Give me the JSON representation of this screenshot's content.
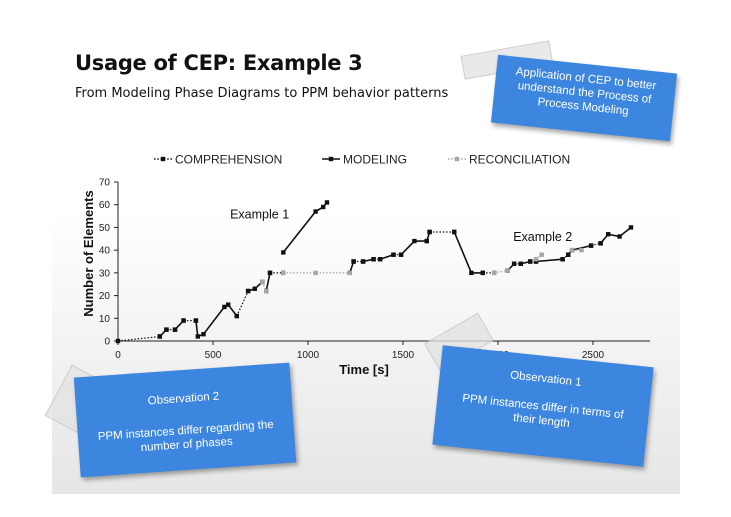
{
  "slide": {
    "title": "Usage of CEP: Example 3",
    "subtitle": "From Modeling Phase Diagrams to PPM behavior patterns"
  },
  "notes": {
    "cep": [
      "Application of CEP to better",
      "understand the Process of",
      "Process Modeling"
    ],
    "obs2": {
      "title": "Observation 2",
      "body": [
        "PPM instances differ regarding the",
        "number of phases"
      ]
    },
    "obs1": {
      "title": "Observation 1",
      "body": [
        "PPM instances differ in terms of",
        "their length"
      ]
    }
  },
  "colors": {
    "note_blue": "#3d86df",
    "comprehension": "#111111",
    "modeling": "#111111",
    "reconciliation": "#a6a6a6"
  },
  "chart_data": {
    "type": "line",
    "xlabel": "Time [s]",
    "ylabel": "Number of Elements",
    "xlim": [
      0,
      2800
    ],
    "ylim": [
      0,
      70
    ],
    "xticks": [
      0,
      500,
      1000,
      1500,
      2000,
      2500
    ],
    "yticks": [
      0,
      10,
      20,
      30,
      40,
      50,
      60,
      70
    ],
    "grid": false,
    "legend_position": "top",
    "annotations": [
      {
        "text": "Example 1",
        "x": 590,
        "y": 54
      },
      {
        "text": "Example 2",
        "x": 2080,
        "y": 44
      }
    ],
    "series": [
      {
        "name": "COMPREHENSION",
        "style": "dotted",
        "segments": [
          [
            [
              0,
              0
            ],
            [
              220,
              2
            ]
          ],
          [
            [
              255,
              5
            ],
            [
              300,
              5
            ]
          ],
          [
            [
              345,
              9
            ],
            [
              410,
              9
            ]
          ],
          [
            [
              625,
              11
            ],
            [
              685,
              22
            ]
          ],
          [
            [
              800,
              30
            ],
            [
              870,
              30
            ]
          ],
          [
            [
              1240,
              35
            ],
            [
              1290,
              35
            ]
          ],
          [
            [
              1345,
              36
            ],
            [
              1380,
              36
            ]
          ],
          [
            [
              1450,
              38
            ],
            [
              1490,
              38
            ]
          ],
          [
            [
              1640,
              48
            ],
            [
              1770,
              48
            ]
          ],
          [
            [
              1920,
              30
            ],
            [
              1980,
              30
            ]
          ],
          [
            [
              2085,
              34
            ],
            [
              2120,
              34
            ]
          ],
          [
            [
              2170,
              35
            ],
            [
              2200,
              35
            ]
          ],
          [
            [
              2340,
              36
            ],
            [
              2370,
              38
            ]
          ],
          [
            [
              2490,
              42
            ],
            [
              2540,
              43
            ]
          ]
        ]
      },
      {
        "name": "MODELING",
        "style": "solid",
        "segments": [
          [
            [
              220,
              2
            ],
            [
              255,
              5
            ]
          ],
          [
            [
              300,
              5
            ],
            [
              345,
              9
            ]
          ],
          [
            [
              410,
              9
            ],
            [
              420,
              2
            ],
            [
              450,
              3
            ],
            [
              560,
              15
            ],
            [
              580,
              16
            ],
            [
              625,
              11
            ]
          ],
          [
            [
              685,
              22
            ],
            [
              720,
              23
            ],
            [
              760,
              26
            ]
          ],
          [
            [
              780,
              22
            ],
            [
              800,
              30
            ]
          ],
          [
            [
              870,
              39
            ],
            [
              1040,
              57
            ],
            [
              1080,
              59
            ],
            [
              1100,
              61
            ]
          ],
          [
            [
              1220,
              30
            ],
            [
              1240,
              35
            ]
          ],
          [
            [
              1290,
              35
            ],
            [
              1345,
              36
            ]
          ],
          [
            [
              1380,
              36
            ],
            [
              1450,
              38
            ]
          ],
          [
            [
              1490,
              38
            ],
            [
              1560,
              44
            ],
            [
              1625,
              44
            ]
          ],
          [
            [
              1625,
              44
            ],
            [
              1640,
              48
            ]
          ],
          [
            [
              1770,
              48
            ],
            [
              1860,
              30
            ],
            [
              1920,
              30
            ]
          ],
          [
            [
              2050,
              31
            ],
            [
              2085,
              34
            ]
          ],
          [
            [
              2120,
              34
            ],
            [
              2170,
              35
            ]
          ],
          [
            [
              2200,
              35
            ],
            [
              2340,
              36
            ]
          ],
          [
            [
              2370,
              38
            ],
            [
              2390,
              40
            ],
            [
              2490,
              42
            ]
          ],
          [
            [
              2540,
              43
            ],
            [
              2580,
              47
            ],
            [
              2640,
              46
            ],
            [
              2700,
              50
            ]
          ]
        ]
      },
      {
        "name": "RECONCILIATION",
        "style": "dotted",
        "segments": [
          [
            [
              760,
              26
            ],
            [
              780,
              22
            ]
          ],
          [
            [
              870,
              30
            ],
            [
              1040,
              30
            ],
            [
              1220,
              30
            ]
          ],
          [
            [
              1980,
              30
            ],
            [
              2050,
              31
            ]
          ],
          [
            [
              2200,
              36
            ],
            [
              2230,
              38
            ]
          ],
          [
            [
              2390,
              40
            ],
            [
              2440,
              40
            ]
          ]
        ]
      }
    ]
  }
}
